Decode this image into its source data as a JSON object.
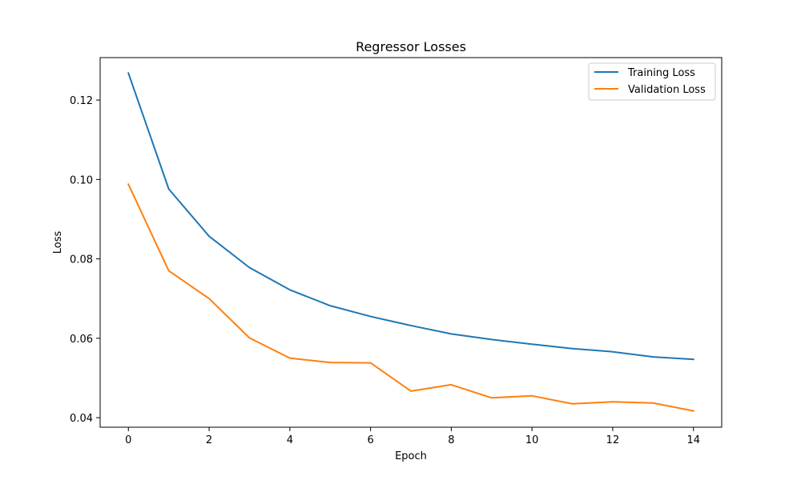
{
  "chart_data": {
    "type": "line",
    "title": "Regressor Losses",
    "xlabel": "Epoch",
    "ylabel": "Loss",
    "x": [
      0,
      1,
      2,
      3,
      4,
      5,
      6,
      7,
      8,
      9,
      10,
      11,
      12,
      13,
      14
    ],
    "xlim": [
      -0.7,
      14.7
    ],
    "ylim": [
      0.0376,
      0.1307
    ],
    "xticks": [
      0,
      2,
      4,
      6,
      8,
      10,
      12,
      14
    ],
    "yticks": [
      0.04,
      0.06,
      0.08,
      0.1,
      0.12
    ],
    "ytick_labels": [
      "0.04",
      "0.06",
      "0.08",
      "0.10",
      "0.12"
    ],
    "grid": false,
    "legend_position": "top-right",
    "series": [
      {
        "name": "Training Loss",
        "color": "#1f77b4",
        "values": [
          0.1268,
          0.0976,
          0.0857,
          0.0778,
          0.0722,
          0.0682,
          0.0655,
          0.0632,
          0.0611,
          0.0597,
          0.0585,
          0.0574,
          0.0566,
          0.0553,
          0.0547
        ]
      },
      {
        "name": "Validation Loss",
        "color": "#ff7f0e",
        "values": [
          0.0988,
          0.077,
          0.07,
          0.0601,
          0.055,
          0.0539,
          0.0538,
          0.0467,
          0.0483,
          0.045,
          0.0455,
          0.0435,
          0.044,
          0.0437,
          0.0417
        ]
      }
    ]
  }
}
